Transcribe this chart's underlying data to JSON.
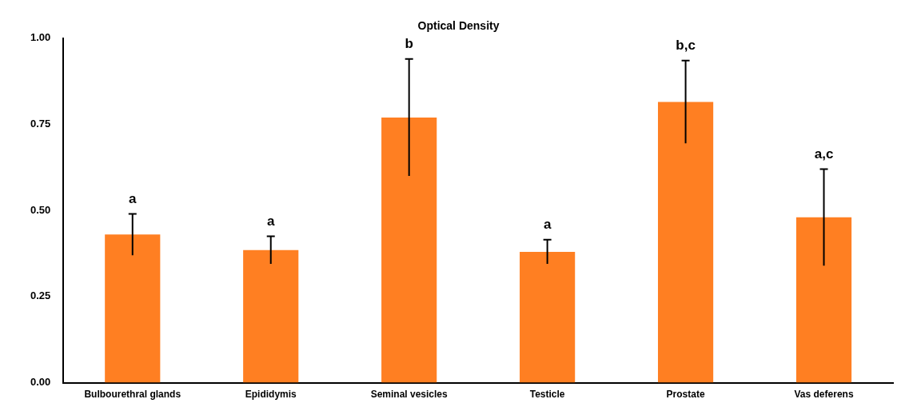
{
  "chart_data": {
    "type": "bar",
    "title": "Optical Density",
    "categories": [
      "Bulbourethral glands",
      "Epididymis",
      "Seminal vesicles",
      "Testicle",
      "Prostate",
      "Vas deferens"
    ],
    "values": [
      0.43,
      0.385,
      0.77,
      0.38,
      0.815,
      0.48
    ],
    "errors": [
      0.06,
      0.04,
      0.17,
      0.035,
      0.12,
      0.14
    ],
    "color": "#ff7f22",
    "ylim": [
      0,
      1
    ],
    "yticks": [
      {
        "value": 0,
        "label": "0.00"
      },
      {
        "value": 0.25,
        "label": "0.25"
      },
      {
        "value": 0.5,
        "label": "0.50"
      },
      {
        "value": 0.75,
        "label": "0.75"
      },
      {
        "value": 1,
        "label": "1.00"
      }
    ],
    "annotations": [
      "a",
      "a",
      "b",
      "a",
      "b,c",
      "a,c"
    ]
  }
}
